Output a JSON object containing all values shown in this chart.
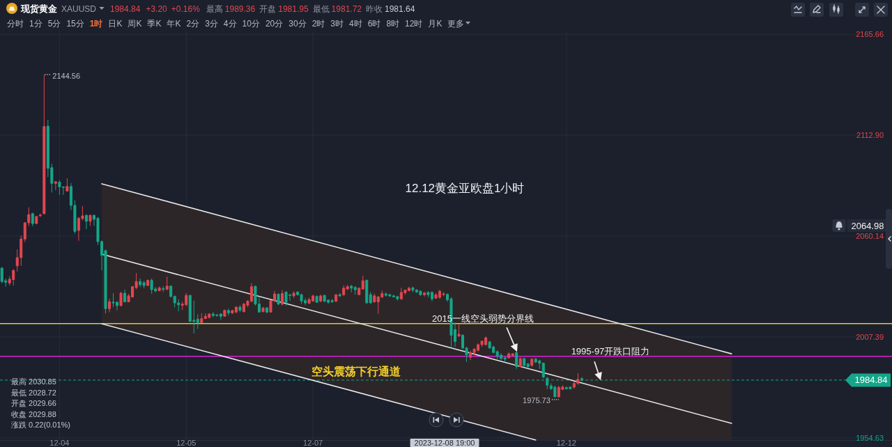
{
  "chart_data": {
    "type": "candlestick",
    "title": "12.12黄金亚欧盘1小时",
    "categories": [
      null,
      null,
      null,
      null,
      null,
      null,
      null,
      null,
      null,
      null,
      null,
      null,
      null,
      null,
      null,
      "12-04",
      null,
      null,
      null,
      null,
      null,
      null,
      null,
      null,
      null,
      null,
      null,
      null,
      null,
      null,
      null,
      null,
      null,
      null,
      null,
      null,
      null,
      null,
      null,
      null,
      null,
      null,
      null,
      null,
      null,
      null,
      null,
      null,
      "12-05",
      null,
      null,
      null,
      null,
      null,
      null,
      null,
      null,
      null,
      null,
      null,
      null,
      null,
      null,
      null,
      null,
      null,
      null,
      null,
      null,
      null,
      null,
      null,
      null,
      null,
      null,
      null,
      null,
      null,
      null,
      null,
      null,
      "12-07",
      null,
      null,
      null,
      null,
      null,
      null,
      null,
      null,
      null,
      null,
      null,
      null,
      null,
      null,
      null,
      null,
      null,
      null,
      null,
      null,
      null,
      null,
      null,
      null,
      null,
      null,
      null,
      null,
      null,
      null,
      null,
      null,
      null,
      null,
      null,
      null,
      null,
      null,
      null,
      null,
      null,
      null,
      null,
      null,
      null,
      null,
      null,
      null,
      null,
      null,
      null,
      null,
      null,
      null,
      null,
      null,
      null,
      null,
      null,
      null,
      null,
      null,
      null,
      null,
      null,
      "12-12",
      null,
      null,
      null,
      null,
      null,
      null,
      null,
      null,
      null,
      null,
      null,
      null,
      null,
      null,
      null,
      null,
      null,
      null,
      null,
      null,
      null,
      null,
      null,
      null,
      null,
      null,
      null,
      null,
      null,
      null,
      null,
      null,
      null,
      null,
      null,
      null,
      null,
      null,
      null,
      null,
      null,
      null,
      null,
      null,
      null,
      null,
      null,
      null,
      null,
      null,
      null,
      null,
      null,
      null,
      null,
      null,
      null,
      null,
      null,
      null,
      null,
      null,
      null,
      null,
      null,
      null,
      null,
      null,
      null,
      null,
      null,
      null,
      null,
      null,
      null,
      null,
      null,
      null,
      null,
      null,
      null,
      null,
      null,
      null
    ],
    "ohlc": [
      [
        2043.4,
        2044.0,
        2035.5,
        2036.4
      ],
      [
        2036.8,
        2038.0,
        2033.7,
        2036.0
      ],
      [
        2035.6,
        2039.2,
        2034.3,
        2037.6
      ],
      [
        2037.4,
        2042.8,
        2034.3,
        2042.2
      ],
      [
        2044.6,
        2053.2,
        2041.6,
        2048.9
      ],
      [
        2048.9,
        2060.4,
        2044.6,
        2058.6
      ],
      [
        2058.6,
        2067.5,
        2057.0,
        2067.1
      ],
      [
        2067.1,
        2075.2,
        2065.3,
        2071.4
      ],
      [
        2071.9,
        2072.3,
        2065.3,
        2066.7
      ],
      [
        2066.7,
        2070.8,
        2066.4,
        2070.4
      ],
      [
        2070.8,
        2071.9,
        2070.1,
        2071.2
      ],
      [
        2071.9,
        2144.56,
        2071.4,
        2117.4
      ],
      [
        2117.6,
        2120.9,
        2091.0,
        2095.6
      ],
      [
        2095.9,
        2098.0,
        2082.9,
        2087.7
      ],
      [
        2087.7,
        2088.9,
        2084.1,
        2088.6
      ],
      [
        2088.3,
        2089.3,
        2081.7,
        2085.9
      ],
      [
        2085.9,
        2085.9,
        2081.7,
        2085.6
      ],
      [
        2083.7,
        2090.4,
        2083.5,
        2086.1
      ],
      [
        2086.1,
        2087.9,
        2073.8,
        2076.2
      ],
      [
        2076.2,
        2078.9,
        2061.4,
        2062.6
      ],
      [
        2063.1,
        2070.1,
        2057.7,
        2069.5
      ],
      [
        2069.3,
        2075.8,
        2068.3,
        2070.7
      ],
      [
        2071.0,
        2071.4,
        2063.8,
        2067.9
      ],
      [
        2067.9,
        2071.4,
        2065.5,
        2071.0
      ],
      [
        2071.0,
        2071.4,
        2065.5,
        2068.9
      ],
      [
        2069.5,
        2070.1,
        2055.5,
        2057.3
      ],
      [
        2057.3,
        2057.9,
        2042.2,
        2050.1
      ],
      [
        2052.5,
        2053.1,
        2019.7,
        2022.2
      ],
      [
        2022.2,
        2027.4,
        2020.4,
        2025.8
      ],
      [
        2025.6,
        2030.3,
        2023.0,
        2025.2
      ],
      [
        2025.6,
        2025.8,
        2021.3,
        2023.8
      ],
      [
        2023.8,
        2031.1,
        2023.4,
        2030.3
      ],
      [
        2030.3,
        2032.1,
        2025.5,
        2025.8
      ],
      [
        2025.8,
        2029.9,
        2025.5,
        2028.9
      ],
      [
        2028.3,
        2034.0,
        2027.9,
        2033.7
      ],
      [
        2033.2,
        2040.8,
        2032.3,
        2036.4
      ],
      [
        2036.4,
        2038.0,
        2033.5,
        2034.7
      ],
      [
        2035.8,
        2036.8,
        2032.8,
        2034.3
      ],
      [
        2034.3,
        2037.4,
        2033.9,
        2037.0
      ],
      [
        2037.0,
        2038.0,
        2030.0,
        2032.1
      ],
      [
        2032.5,
        2033.5,
        2030.7,
        2031.5
      ],
      [
        2031.6,
        2033.7,
        2031.3,
        2033.1
      ],
      [
        2032.7,
        2033.9,
        2031.0,
        2032.3
      ],
      [
        2032.3,
        2038.9,
        2031.9,
        2034.0
      ],
      [
        2034.0,
        2034.3,
        2027.9,
        2028.6
      ],
      [
        2028.6,
        2029.1,
        2022.8,
        2025.2
      ],
      [
        2025.2,
        2027.0,
        2020.8,
        2024.2
      ],
      [
        2024.0,
        2025.8,
        2021.5,
        2024.6
      ],
      [
        2024.2,
        2030.3,
        2023.6,
        2029.1
      ],
      [
        2029.1,
        2029.5,
        2015.3,
        2015.5
      ],
      [
        2016.1,
        2026.4,
        2009.2,
        2015.5
      ],
      [
        2016.7,
        2019.2,
        2011.6,
        2014.9
      ],
      [
        2014.9,
        2019.8,
        2014.5,
        2017.0
      ],
      [
        2017.0,
        2019.8,
        2016.8,
        2018.2
      ],
      [
        2017.6,
        2019.8,
        2017.0,
        2019.4
      ],
      [
        2019.4,
        2020.4,
        2017.7,
        2018.6
      ],
      [
        2018.9,
        2019.4,
        2018.0,
        2018.6
      ],
      [
        2019.4,
        2019.8,
        2016.4,
        2018.2
      ],
      [
        2018.2,
        2021.8,
        2018.0,
        2021.3
      ],
      [
        2021.2,
        2022.2,
        2018.6,
        2020.0
      ],
      [
        2019.9,
        2021.6,
        2019.5,
        2021.2
      ],
      [
        2020.4,
        2023.4,
        2019.8,
        2023.0
      ],
      [
        2023.0,
        2024.0,
        2020.4,
        2021.3
      ],
      [
        2020.6,
        2025.2,
        2020.2,
        2024.6
      ],
      [
        2024.0,
        2026.7,
        2023.0,
        2026.1
      ],
      [
        2026.1,
        2035.6,
        2025.5,
        2033.7
      ],
      [
        2033.9,
        2034.3,
        2023.8,
        2024.6
      ],
      [
        2024.6,
        2027.9,
        2020.1,
        2020.4
      ],
      [
        2020.6,
        2023.0,
        2020.4,
        2022.6
      ],
      [
        2022.6,
        2023.0,
        2019.8,
        2020.4
      ],
      [
        2020.4,
        2026.7,
        2020.1,
        2026.4
      ],
      [
        2026.4,
        2031.5,
        2025.5,
        2029.9
      ],
      [
        2029.7,
        2030.3,
        2024.0,
        2024.6
      ],
      [
        2024.6,
        2031.9,
        2023.8,
        2030.1
      ],
      [
        2030.9,
        2031.3,
        2023.8,
        2025.5
      ],
      [
        2029.5,
        2029.7,
        2026.4,
        2029.1
      ],
      [
        2028.9,
        2031.3,
        2027.7,
        2030.3
      ],
      [
        2030.9,
        2031.3,
        2029.1,
        2029.5
      ],
      [
        2029.5,
        2030.1,
        2024.6,
        2026.2
      ],
      [
        2026.4,
        2027.7,
        2024.0,
        2025.2
      ],
      [
        2025.0,
        2027.9,
        2024.6,
        2027.0
      ],
      [
        2026.2,
        2029.5,
        2025.8,
        2028.9
      ],
      [
        2028.6,
        2029.1,
        2025.2,
        2025.5
      ],
      [
        2026.1,
        2029.5,
        2025.6,
        2028.9
      ],
      [
        2029.1,
        2029.5,
        2025.6,
        2026.1
      ],
      [
        2026.7,
        2027.0,
        2024.8,
        2025.5
      ],
      [
        2026.4,
        2027.3,
        2025.2,
        2025.8
      ],
      [
        2026.1,
        2029.7,
        2025.6,
        2029.5
      ],
      [
        2029.5,
        2030.4,
        2028.3,
        2028.9
      ],
      [
        2029.5,
        2034.3,
        2028.9,
        2032.9
      ],
      [
        2032.5,
        2034.6,
        2031.9,
        2033.7
      ],
      [
        2034.0,
        2034.6,
        2030.7,
        2032.9
      ],
      [
        2033.3,
        2034.0,
        2029.5,
        2032.1
      ],
      [
        2029.5,
        2033.3,
        2029.2,
        2032.9
      ],
      [
        2032.5,
        2039.4,
        2032.1,
        2036.8
      ],
      [
        2037.0,
        2037.4,
        2024.8,
        2025.2
      ],
      [
        2029.5,
        2030.9,
        2024.8,
        2025.2
      ],
      [
        2025.8,
        2030.1,
        2025.2,
        2028.9
      ],
      [
        2025.8,
        2028.9,
        2019.5,
        2028.3
      ],
      [
        2028.3,
        2031.7,
        2027.7,
        2030.1
      ],
      [
        2029.9,
        2030.7,
        2028.5,
        2029.2
      ],
      [
        2029.5,
        2030.1,
        2028.5,
        2028.8
      ],
      [
        2028.9,
        2029.5,
        2028.1,
        2028.3
      ],
      [
        2028.5,
        2028.9,
        2026.4,
        2027.3
      ],
      [
        2027.3,
        2033.1,
        2026.8,
        2030.7
      ],
      [
        2030.5,
        2032.1,
        2029.5,
        2031.9
      ],
      [
        2031.6,
        2033.7,
        2031.3,
        2032.9
      ],
      [
        2033.1,
        2033.7,
        2030.7,
        2031.9
      ],
      [
        2031.9,
        2032.5,
        2030.4,
        2030.9
      ],
      [
        2031.3,
        2031.9,
        2028.9,
        2029.5
      ],
      [
        2029.5,
        2030.9,
        2028.5,
        2030.4
      ],
      [
        2030.7,
        2031.3,
        2028.2,
        2029.5
      ],
      [
        2030.7,
        2031.3,
        2026.1,
        2027.3
      ],
      [
        2027.7,
        2030.4,
        2027.3,
        2029.5
      ],
      [
        2028.1,
        2032.1,
        2027.3,
        2031.3
      ],
      [
        2029.66,
        2030.85,
        2028.72,
        2029.88
      ],
      [
        2029.7,
        2030.1,
        2025.8,
        2026.8
      ],
      [
        2027.3,
        2028.3,
        2002.2,
        2008.3
      ],
      [
        2011.3,
        2014.9,
        2002.2,
        2005.0
      ],
      [
        2007.9,
        2014.3,
        2007.4,
        2008.8
      ],
      [
        2008.3,
        2008.8,
        2000.9,
        2001.6
      ],
      [
        2001.6,
        2002.2,
        1994.3,
        1998.0
      ],
      [
        1996.8,
        2000.2,
        1995.3,
        1999.3
      ],
      [
        1999.3,
        2001.6,
        1998.0,
        2001.0
      ],
      [
        2000.4,
        2004.0,
        1999.9,
        2003.4
      ],
      [
        2003.4,
        2005.6,
        2002.2,
        2005.2
      ],
      [
        2003.4,
        2007.6,
        2002.9,
        2007.0
      ],
      [
        2004.8,
        2005.4,
        2001.3,
        2001.6
      ],
      [
        2002.2,
        2002.8,
        1998.9,
        1999.3
      ],
      [
        1999.7,
        2000.4,
        1995.8,
        1997.3
      ],
      [
        1997.9,
        1998.9,
        1995.3,
        1996.1
      ],
      [
        1996.5,
        1996.9,
        1994.5,
        1995.8
      ],
      [
        1996.5,
        1999.3,
        1996.1,
        1998.6
      ],
      [
        1997.7,
        1998.9,
        1997.3,
        1998.6
      ],
      [
        1999.2,
        1999.8,
        1990.7,
        1991.9
      ],
      [
        1991.9,
        1996.7,
        1991.6,
        1996.1
      ],
      [
        1996.1,
        1996.5,
        1991.6,
        1992.5
      ],
      [
        1993.3,
        1993.7,
        1991.3,
        1991.9
      ],
      [
        1992.5,
        1996.1,
        1991.9,
        1995.8
      ],
      [
        1995.8,
        1996.4,
        1993.7,
        1994.3
      ],
      [
        1994.9,
        1995.5,
        1990.7,
        1993.7
      ],
      [
        1993.7,
        1994.0,
        1985.8,
        1986.4
      ],
      [
        1985.8,
        1986.4,
        1980.0,
        1982.2
      ],
      [
        1981.9,
        1983.1,
        1979.6,
        1980.3
      ],
      [
        1981.2,
        1981.9,
        1976.0,
        1976.1
      ],
      [
        1976.1,
        1981.9,
        1975.73,
        1981.0
      ],
      [
        1980.0,
        1982.2,
        1979.6,
        1981.2
      ],
      [
        1980.9,
        1981.5,
        1979.9,
        1980.3
      ],
      [
        1981.2,
        1981.5,
        1979.9,
        1980.3
      ],
      [
        1981.2,
        1984.0,
        1980.3,
        1983.1
      ],
      [
        1983.1,
        1988.5,
        1982.4,
        1985.2
      ],
      [
        1985.6,
        1986.4,
        1984.2,
        1984.84
      ],
      null,
      null,
      null,
      null,
      null,
      null,
      null,
      null,
      null,
      null,
      null,
      null,
      null,
      null,
      null,
      null,
      null,
      null,
      null,
      null,
      null,
      null,
      null,
      null,
      null,
      null,
      null,
      null,
      null,
      null,
      null,
      null,
      null,
      null,
      null,
      null,
      null,
      null,
      null,
      null,
      null,
      null,
      null,
      null,
      null,
      null,
      null,
      null,
      null,
      null,
      null,
      null,
      null,
      null,
      null,
      null,
      null,
      null,
      null,
      null,
      null,
      null,
      null,
      null,
      null,
      null,
      null,
      null,
      null,
      null,
      null,
      null,
      null,
      null,
      null,
      null,
      null,
      null,
      null,
      null
    ],
    "colors": [
      "#15a689",
      "#15a689",
      "#e2474f",
      "#e2474f",
      "#e2474f",
      "#e2474f",
      "#e2474f",
      "#e2474f",
      "#15a689",
      "#e2474f",
      "#e2474f",
      "#e2474f",
      "#15a689",
      "#15a689",
      "#e2474f",
      "#15a689",
      "#15a689",
      "#e2474f",
      "#15a689",
      "#15a689",
      "#e2474f",
      "#e2474f",
      "#15a689",
      "#e2474f",
      "#15a689",
      "#15a689",
      "#15a689",
      "#15a689",
      "#e2474f",
      "#15a689",
      "#15a689",
      "#e2474f",
      "#15a689",
      "#e2474f",
      "#e2474f",
      "#e2474f",
      "#15a689",
      "#15a689",
      "#e2474f",
      "#15a689",
      "#15a689",
      "#e2474f",
      "#15a689",
      "#e2474f",
      "#15a689",
      "#15a689",
      "#15a689",
      "#e2474f",
      "#e2474f",
      "#15a689",
      "#15a689",
      "#15a689",
      "#e2474f",
      "#e2474f",
      "#e2474f",
      "#15a689",
      "#15a689",
      "#15a689",
      "#e2474f",
      "#15a689",
      "#e2474f",
      "#e2474f",
      "#15a689",
      "#e2474f",
      "#e2474f",
      "#e2474f",
      "#15a689",
      "#15a689",
      "#e2474f",
      "#15a689",
      "#e2474f",
      "#e2474f",
      "#15a689",
      "#e2474f",
      "#15a689",
      "#15a689",
      "#e2474f",
      "#15a689",
      "#15a689",
      "#15a689",
      "#e2474f",
      "#e2474f",
      "#15a689",
      "#e2474f",
      "#15a689",
      "#15a689",
      "#15a689",
      "#e2474f",
      "#15a689",
      "#e2474f",
      "#e2474f",
      "#15a689",
      "#15a689",
      "#e2474f",
      "#e2474f",
      "#15a689",
      "#15a689",
      "#e2474f",
      "#e2474f",
      "#e2474f",
      "#15a689",
      "#15a689",
      "#15a689",
      "#15a689",
      "#e2474f",
      "#e2474f",
      "#e2474f",
      "#15a689",
      "#15a689",
      "#15a689",
      "#e2474f",
      "#15a689",
      "#15a689",
      "#e2474f",
      "#e2474f",
      "#e2474f",
      "#15a689",
      "#15a689",
      "#15a689",
      "#e2474f",
      "#15a689",
      "#15a689",
      "#e2474f",
      "#e2474f",
      "#e2474f",
      "#e2474f",
      "#e2474f",
      "#15a689",
      "#15a689",
      "#15a689",
      "#15a689",
      "#15a689",
      "#e2474f",
      "#e2474f",
      "#15a689",
      "#e2474f",
      "#15a689",
      "#15a689",
      "#e2474f",
      "#15a689",
      "#15a689",
      "#15a689",
      "#15a689",
      "#15a689",
      "#15a689",
      "#e2474f",
      "#e2474f",
      "#15a689",
      "#15a689",
      "#e2474f",
      "#e2474f",
      "#15a689",
      null,
      null,
      null,
      null,
      null,
      null,
      null,
      null,
      null,
      null,
      null,
      null,
      null,
      null,
      null,
      null,
      null,
      null,
      null,
      null,
      null,
      null,
      null,
      null,
      null,
      null,
      null,
      null,
      null,
      null,
      null,
      null,
      null,
      null,
      null,
      null,
      null,
      null,
      null,
      null,
      null,
      null,
      null,
      null,
      null,
      null,
      null,
      null,
      null,
      null,
      null,
      null,
      null,
      null,
      null,
      null,
      null,
      null,
      null,
      null,
      null,
      null,
      null,
      null,
      null,
      null,
      null,
      null,
      null,
      null,
      null,
      null,
      null,
      null,
      null,
      null,
      null,
      null,
      null,
      null
    ],
    "series": [
      {
        "type": "line",
        "color": "#e8e8e8",
        "values": [
          null,
          null,
          null,
          null,
          null,
          null,
          null,
          null,
          null,
          null,
          null,
          null,
          null,
          null,
          null,
          null,
          null,
          null,
          null,
          null,
          null,
          null,
          null,
          null,
          null,
          null,
          2087.5,
          null,
          null,
          null,
          null,
          null,
          null,
          null,
          null,
          null,
          null,
          null,
          null,
          null,
          null,
          null,
          null,
          null,
          null,
          null,
          null,
          null,
          null,
          null,
          null,
          null,
          null,
          null,
          null,
          null,
          null,
          null,
          null,
          null,
          null,
          null,
          null,
          null,
          null,
          null,
          null,
          null,
          null,
          null,
          null,
          null,
          null,
          null,
          null,
          null,
          null,
          null,
          null,
          null,
          null,
          null,
          null,
          null,
          null,
          null,
          null,
          null,
          null,
          null,
          null,
          null,
          null,
          null,
          null,
          null,
          null,
          null,
          null,
          null,
          null,
          null,
          null,
          null,
          null,
          null,
          null,
          null,
          null,
          null,
          null,
          null,
          null,
          null,
          null,
          null,
          null,
          null,
          null,
          null,
          null,
          null,
          null,
          null,
          null,
          null,
          null,
          null,
          null,
          null,
          null,
          null,
          null,
          null,
          null,
          null,
          null,
          null,
          null,
          null,
          null,
          null,
          null,
          null,
          null,
          null,
          null,
          null,
          null,
          null,
          null,
          null,
          null,
          null,
          null,
          null,
          null,
          null,
          null,
          null,
          null,
          null,
          null,
          null,
          null,
          null,
          null,
          null,
          null,
          null,
          null,
          null,
          null,
          null,
          null,
          null,
          null,
          null,
          null,
          null,
          null,
          null,
          null,
          null,
          null,
          null,
          null,
          null,
          null,
          null,
          1998.6,
          null,
          null,
          null,
          null,
          null,
          null,
          null,
          null,
          null,
          null,
          null,
          null,
          null,
          null,
          null,
          null,
          null,
          null,
          null,
          null,
          null,
          null,
          null,
          null,
          null,
          null,
          null,
          null,
          null,
          null,
          null,
          null,
          null,
          null,
          null,
          null,
          null,
          null,
          null,
          null,
          null
        ]
      },
      {
        "type": "line",
        "color": "#e8e8e8",
        "values": [
          null,
          null,
          null,
          null,
          null,
          null,
          null,
          null,
          null,
          null,
          null,
          null,
          null,
          null,
          null,
          null,
          null,
          null,
          null,
          null,
          null,
          null,
          null,
          null,
          null,
          null,
          2050.7,
          null,
          null,
          null,
          null,
          null,
          null,
          null,
          null,
          null,
          null,
          null,
          null,
          null,
          null,
          null,
          null,
          null,
          null,
          null,
          null,
          null,
          null,
          null,
          null,
          null,
          null,
          null,
          null,
          null,
          null,
          null,
          null,
          null,
          null,
          null,
          null,
          null,
          null,
          null,
          null,
          null,
          null,
          null,
          null,
          null,
          null,
          null,
          null,
          null,
          null,
          null,
          null,
          null,
          null,
          null,
          null,
          null,
          null,
          null,
          null,
          null,
          null,
          null,
          null,
          null,
          null,
          null,
          null,
          null,
          null,
          null,
          null,
          null,
          null,
          null,
          null,
          null,
          null,
          null,
          null,
          null,
          null,
          null,
          null,
          null,
          null,
          null,
          null,
          null,
          null,
          null,
          null,
          null,
          null,
          null,
          null,
          null,
          null,
          null,
          null,
          null,
          null,
          null,
          null,
          null,
          null,
          null,
          null,
          null,
          null,
          null,
          null,
          1989.8,
          null,
          null,
          null,
          null,
          null,
          null,
          null,
          null,
          null,
          null,
          null,
          null,
          null,
          null,
          null,
          null,
          null,
          null,
          null,
          null,
          null,
          null,
          null,
          null,
          null,
          null,
          null,
          null,
          null,
          null,
          null,
          null,
          null,
          null,
          null,
          null,
          null,
          null,
          null,
          null,
          null,
          null,
          null,
          null,
          null,
          null,
          null,
          null,
          null,
          null,
          1962.2,
          null,
          null,
          null,
          null,
          null,
          null,
          null,
          null,
          null,
          null,
          null,
          null,
          null,
          null,
          null,
          null,
          null,
          null,
          null,
          null,
          null,
          null,
          null,
          null,
          null,
          null,
          null,
          null,
          null,
          null,
          null,
          null,
          null,
          null,
          null,
          null,
          null,
          null,
          null,
          null,
          null
        ],
        "lower": [
          null,
          null,
          null,
          null,
          null,
          null,
          null,
          null,
          null,
          null,
          null,
          null,
          null,
          null,
          null,
          null,
          null,
          null,
          null,
          null,
          null,
          null,
          null,
          null,
          null,
          null,
          2014.3,
          null,
          null,
          null,
          null,
          null,
          null,
          null,
          null,
          null,
          null,
          null,
          null,
          null,
          null,
          null,
          null,
          null,
          null,
          null,
          null,
          null,
          null,
          null,
          null,
          null,
          null,
          null,
          null,
          null,
          null,
          null,
          null,
          null,
          null,
          null,
          null,
          null,
          null,
          null,
          null,
          null,
          null,
          null,
          null,
          null,
          null,
          null,
          null,
          null,
          null,
          null,
          null,
          null,
          null,
          null,
          null,
          null,
          null,
          null,
          null,
          null,
          null,
          null,
          null,
          null,
          null,
          null,
          null,
          null,
          null,
          null,
          null,
          null,
          null,
          null,
          null,
          null,
          null,
          null,
          null,
          null,
          null,
          null,
          null,
          null,
          null,
          null,
          null,
          null,
          null,
          null,
          null,
          null,
          null,
          null,
          null,
          null,
          null,
          null,
          null,
          null,
          null,
          null,
          null,
          null,
          null,
          null,
          null,
          null,
          null,
          null,
          null,
          1953.5,
          null,
          null,
          null,
          null,
          null,
          null,
          null,
          null,
          null,
          null,
          null,
          null,
          null,
          null,
          null,
          null,
          null,
          null,
          null,
          null,
          null,
          null,
          null,
          null,
          null,
          null,
          null,
          null,
          null,
          null,
          null,
          null,
          null,
          null,
          null,
          null,
          null,
          null,
          null,
          null,
          null,
          null,
          null,
          null,
          null,
          null,
          null,
          null,
          null,
          null,
          1953.5,
          null,
          null,
          null,
          null,
          null,
          null,
          null,
          null,
          null,
          null,
          null,
          null,
          null,
          null,
          null,
          null,
          null,
          null,
          null,
          null,
          null,
          null,
          null,
          null,
          null,
          null,
          null,
          null,
          null,
          null,
          null,
          null,
          null,
          null,
          null,
          null,
          null,
          null,
          null,
          null,
          null
        ],
        "upper": [
          null,
          null,
          null,
          null,
          null,
          null,
          null,
          null,
          null,
          null,
          null,
          null,
          null,
          null,
          null,
          null,
          null,
          null,
          null,
          null,
          null,
          null,
          null,
          null,
          null,
          null,
          2087.5,
          null,
          null,
          null,
          null,
          null,
          null,
          null,
          null,
          null,
          null,
          null,
          null,
          null,
          null,
          null,
          null,
          null,
          null,
          null,
          null,
          null,
          null,
          null,
          null,
          null,
          null,
          null,
          null,
          null,
          null,
          null,
          null,
          null,
          null,
          null,
          null,
          null,
          null,
          null,
          null,
          null,
          null,
          null,
          null,
          null,
          null,
          null,
          null,
          null,
          null,
          null,
          null,
          null,
          null,
          null,
          null,
          null,
          null,
          null,
          null,
          null,
          null,
          null,
          null,
          null,
          null,
          null,
          null,
          null,
          null,
          null,
          null,
          null,
          null,
          null,
          null,
          null,
          null,
          null,
          null,
          null,
          null,
          null,
          null,
          null,
          null,
          null,
          null,
          null,
          null,
          null,
          null,
          null,
          null,
          null,
          null,
          null,
          null,
          null,
          null,
          null,
          null,
          null,
          null,
          null,
          null,
          null,
          null,
          null,
          null,
          null,
          null,
          2026.3,
          null,
          null,
          null,
          null,
          null,
          null,
          null,
          null,
          null,
          null,
          null,
          null,
          null,
          null,
          null,
          null,
          null,
          null,
          null,
          null,
          null,
          null,
          null,
          null,
          null,
          null,
          null,
          null,
          null,
          null,
          null,
          null,
          null,
          null,
          null,
          null,
          null,
          null,
          null,
          null,
          null,
          null,
          null,
          null,
          null,
          null,
          null,
          null,
          null,
          null,
          1998.6,
          null,
          null,
          null,
          null,
          null,
          null,
          null,
          null,
          null,
          null,
          null,
          null,
          null,
          null,
          null,
          null,
          null,
          null,
          null,
          null,
          null,
          null,
          null,
          null,
          null,
          null,
          null,
          null,
          null,
          null,
          null,
          null,
          null,
          null,
          null,
          null,
          null,
          null,
          null,
          null,
          null
        ]
      },
      {
        "type": "line",
        "color": "#e8e8e8",
        "values": [
          null,
          null,
          null,
          null,
          null,
          null,
          null,
          null,
          null,
          null,
          null,
          null,
          null,
          null,
          null,
          null,
          null,
          null,
          null,
          null,
          null,
          null,
          null,
          null,
          null,
          null,
          2014.3,
          null,
          null,
          null,
          null,
          null,
          null,
          null,
          null,
          null,
          null,
          null,
          null,
          null,
          null,
          null,
          null,
          null,
          null,
          null,
          null,
          null,
          null,
          null,
          null,
          null,
          null,
          null,
          null,
          null,
          null,
          null,
          null,
          null,
          null,
          null,
          null,
          null,
          null,
          null,
          null,
          null,
          null,
          null,
          null,
          null,
          null,
          null,
          null,
          null,
          null,
          null,
          null,
          null,
          null,
          null,
          null,
          null,
          null,
          null,
          null,
          null,
          null,
          null,
          null,
          null,
          null,
          null,
          null,
          null,
          null,
          null,
          null,
          null,
          null,
          null,
          null,
          null,
          null,
          null,
          null,
          null,
          null,
          null,
          null,
          null,
          null,
          null,
          null,
          null,
          null,
          null,
          null,
          null,
          null,
          null,
          null,
          null,
          null,
          null,
          null,
          null,
          null,
          null,
          null,
          null,
          null,
          null,
          null,
          null,
          null,
          null,
          null,
          1953.5,
          null,
          null,
          null,
          null,
          null,
          null,
          null,
          null,
          null,
          null,
          null,
          null,
          null,
          null,
          null,
          null,
          null,
          null,
          null,
          null,
          null,
          null,
          null,
          null,
          null,
          null,
          null,
          null,
          null,
          null,
          null,
          null,
          null,
          null,
          null,
          null,
          null,
          null,
          null,
          null,
          null,
          null,
          null,
          null,
          null,
          null,
          null,
          null,
          null,
          null,
          null,
          null,
          null,
          null,
          null,
          null,
          null,
          null,
          null,
          null,
          null,
          null,
          null,
          null,
          null,
          null,
          null,
          null,
          null,
          null,
          null,
          null,
          null,
          null,
          null,
          null,
          null,
          null,
          null,
          null,
          null,
          null,
          null,
          null,
          null,
          null,
          null,
          null,
          null,
          null,
          null,
          null
        ]
      }
    ],
    "ref_lines": [
      {
        "axis": "y",
        "value": 2014.4,
        "label": "2015一线空头弱势分界线",
        "color": "#e3c53c"
      },
      {
        "axis": "y",
        "value": 1997.3,
        "label": "1995-97开跌口阻力",
        "color": "#d91fd9"
      },
      {
        "axis": "y",
        "value": 1984.84,
        "label": "1984.84",
        "color": "#15a689",
        "line_style": "dashed"
      }
    ],
    "ylim": [
      1953.5,
      2167.2
    ],
    "yticks": [
      2165.66,
      {
        "value": 2112.9,
        "label": "2112.90"
      },
      2060.14,
      2007.39,
      1954.63
    ],
    "grid": true,
    "annotations": [
      "现货黄金",
      "XAUUSD",
      "1984.84",
      "+3.20",
      "+0.16%",
      "最高",
      "1989.36",
      "开盘",
      "1981.95",
      "最低",
      "1981.72",
      "昨收",
      "1981.64",
      "分时",
      "1分",
      "5分",
      "15分",
      "1时",
      "日K",
      "周K",
      "季K",
      "年K",
      "2分",
      "3分",
      "4分",
      "10分",
      "20分",
      "30分",
      "2时",
      "3时",
      "4时",
      "6时",
      "8时",
      "12时",
      "月K",
      "更多",
      "最高 2030.85",
      "最低 2028.72",
      "开盘 2029.66",
      "收盘 2029.88",
      "涨跌 0.22(0.01%)",
      "2023-12-08 19:00",
      "2064.98",
      "2144.56",
      "1975.73",
      "空头震荡下行通道"
    ]
  }
}
